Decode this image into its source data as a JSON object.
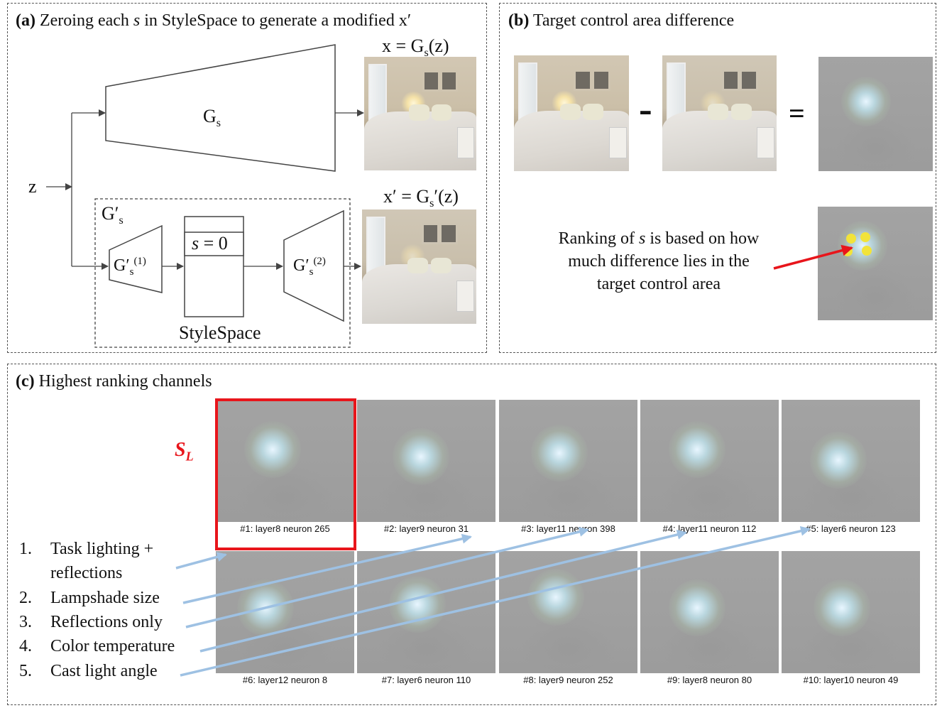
{
  "panel_a": {
    "title_bold": "(a)",
    "title_rest": "Zeroing each",
    "title_var": "s",
    "title_end": "in StyleSpace to generate a modified x′",
    "gs_label": "G",
    "gs_sub": "s",
    "z_label": "z",
    "x_label": "x = G",
    "x_sub": "s",
    "x_end": "(z)",
    "xprime_label": "x′ = G",
    "xprime_sub": "s",
    "xprime_end": "′(z)",
    "gprime_box_label": "G′",
    "gprime_box_sub": "s",
    "g1_label": "G′",
    "g1_sub": "s",
    "g1_sup": "(1)",
    "g2_label": "G′",
    "g2_sub": "s",
    "g2_sup": "(2)",
    "s_zero_var": "s",
    "s_zero_rest": " = 0",
    "stylespace_label": "StyleSpace"
  },
  "panel_b": {
    "title_bold": "(b)",
    "title_rest": "Target control area difference",
    "minus": "-",
    "equals": "=",
    "ranking_line1_pre": "Ranking of",
    "ranking_var": "s",
    "ranking_line1_post": "is based on how",
    "ranking_line2": "much difference lies in the",
    "ranking_line3": "target control area",
    "arrow_color": "#e8151b",
    "dot_color": "#f2e33a"
  },
  "panel_c": {
    "title_bold": "(c)",
    "title_rest": "Highest ranking channels",
    "sl_symbol": "S",
    "sl_sub": "L",
    "highlight_color": "#e8151b",
    "arrow_color": "#9ec1e3",
    "channels": [
      "#1: layer8 neuron 265",
      "#2: layer9 neuron 31",
      "#3: layer11 neuron 398",
      "#4: layer11 neuron 112",
      "#5: layer6 neuron 123",
      "#6: layer12 neuron 8",
      "#7: layer6 neuron 110",
      "#8: layer9 neuron 252",
      "#9: layer8 neuron 80",
      "#10: layer10 neuron 49"
    ],
    "steps": [
      {
        "num": "1.",
        "text": "Task lighting +",
        "text2": "reflections"
      },
      {
        "num": "2.",
        "text": "Lampshade size"
      },
      {
        "num": "3.",
        "text": "Reflections only"
      },
      {
        "num": "4.",
        "text": "Color temperature"
      },
      {
        "num": "5.",
        "text": "Cast light angle"
      }
    ]
  }
}
